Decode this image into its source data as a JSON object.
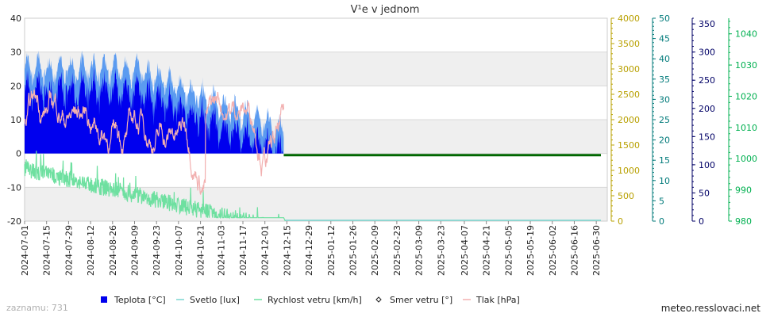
{
  "chart_data": {
    "type": "area",
    "title": "V¹e v jednom",
    "x_start": "2024-07-01",
    "x_end": "2025-07-07",
    "x_tick_labels": [
      "2024-07-01",
      "2024-07-15",
      "2024-07-29",
      "2024-08-12",
      "2024-08-26",
      "2024-09-09",
      "2024-09-23",
      "2024-10-07",
      "2024-10-21",
      "2024-11-03",
      "2024-11-17",
      "2024-12-01",
      "2024-12-15",
      "2024-12-29",
      "2025-01-12",
      "2025-01-26",
      "2025-02-09",
      "2025-02-23",
      "2025-03-09",
      "2025-03-23",
      "2025-04-07",
      "2025-04-21",
      "2025-05-05",
      "2025-05-19",
      "2025-06-02",
      "2025-06-16",
      "2025-06-30"
    ],
    "y_axes": [
      {
        "name": "Teplota",
        "unit": "°C",
        "range": [
          -20,
          40
        ],
        "ticks": [
          40,
          30,
          20,
          10,
          0,
          -10,
          -20
        ],
        "color": "#222222"
      },
      {
        "name": "Svetlo",
        "unit": "lux",
        "range": [
          0,
          4000
        ],
        "ticks": [
          4000,
          3500,
          3000,
          2500,
          2000,
          1500,
          1000,
          500,
          0
        ],
        "color": "#b8a000"
      },
      {
        "name": "Rychlost vetru",
        "unit": "km/h",
        "range": [
          0,
          50
        ],
        "ticks": [
          50,
          45,
          40,
          35,
          30,
          25,
          20,
          15,
          10,
          5,
          0
        ],
        "color": "#007a7a"
      },
      {
        "name": "Smer vetru",
        "unit": "°",
        "range": [
          0,
          360
        ],
        "ticks": [
          350,
          300,
          250,
          200,
          150,
          100,
          50,
          0
        ],
        "color": "#000066"
      },
      {
        "name": "Tlak",
        "unit": "hPa",
        "range": [
          980,
          1045
        ],
        "ticks": [
          1040,
          1030,
          1020,
          1010,
          1000,
          990,
          980
        ],
        "color": "#00b050"
      }
    ],
    "series": [
      {
        "name": "Teplota [°C]",
        "color": "#0000ee",
        "approx_range": [
          0,
          32
        ],
        "data_until": "2024-12-13"
      },
      {
        "name": "Svetlo [lux]",
        "color": "#7ad6d0",
        "approx_range": [
          0,
          0
        ]
      },
      {
        "name": "Rychlost vetru [km/h]",
        "color": "#6ee0a0",
        "approx_range": [
          -20,
          2
        ],
        "data_until": "2024-12-13"
      },
      {
        "name": "Smer vetru [°]",
        "color": "#006600"
      },
      {
        "name": "Tlak [hPa]",
        "color": "#f2b0b0",
        "approx_range": [
          -15,
          28
        ],
        "data_until": "2024-12-13"
      }
    ],
    "grid": true,
    "legend_position": "bottom"
  },
  "footer": {
    "records": "zaznamu: 731",
    "site": "meteo.resslovaci.net"
  }
}
